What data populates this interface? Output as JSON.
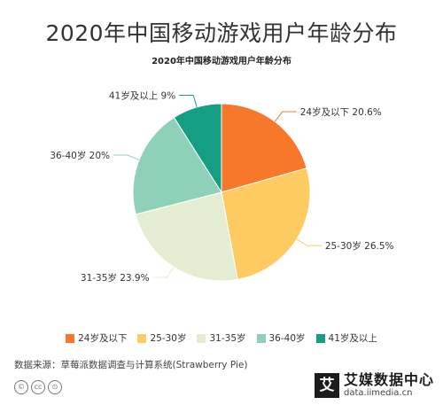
{
  "page": {
    "title": "2020年中国移动游戏用户年龄分布",
    "source": "数据来源：草莓派数据调查与计算系统(Strawberry Pie)",
    "brand_name": "艾媒数据中心",
    "brand_url": "data.iimedia.cn",
    "brand_logo_char": "艾"
  },
  "icons": [
    "copyright-icon",
    "cc-icon",
    "attribution-icon"
  ],
  "chart_data": {
    "type": "pie",
    "title": "2020年中国移动游戏用户年龄分布",
    "legend_position": "bottom",
    "start_angle_deg": 0,
    "direction": "clockwise",
    "slices": [
      {
        "name": "24岁及以下",
        "value": 20.6,
        "label": "24岁及以下 20.6%",
        "color": "#f8782b"
      },
      {
        "name": "25-30岁",
        "value": 26.5,
        "label": "25-30岁 26.5%",
        "color": "#fdcb62"
      },
      {
        "name": "31-35岁",
        "value": 23.9,
        "label": "31-35岁 23.9%",
        "color": "#e4ecd2"
      },
      {
        "name": "36-40岁",
        "value": 20,
        "label": "36-40岁 20%",
        "color": "#8ed1b8"
      },
      {
        "name": "41岁及以上",
        "value": 9,
        "label": "41岁及以上 9%",
        "color": "#169e82"
      }
    ]
  }
}
